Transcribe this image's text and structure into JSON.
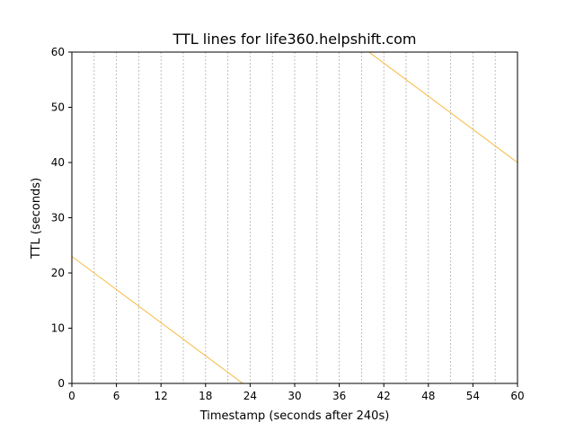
{
  "chart_data": {
    "type": "line",
    "title": "TTL lines for life360.helpshift.com",
    "xlabel": "Timestamp (seconds after 240s)",
    "ylabel": "TTL (seconds)",
    "xlim": [
      0,
      60
    ],
    "ylim": [
      0,
      60
    ],
    "xticks": [
      0,
      6,
      12,
      18,
      24,
      30,
      36,
      42,
      48,
      54,
      60
    ],
    "yticks": [
      0,
      10,
      20,
      30,
      40,
      50,
      60
    ],
    "vertical_gridlines_x": [
      3,
      6,
      9,
      12,
      15,
      18,
      21,
      24,
      27,
      30,
      33,
      36,
      39,
      42,
      45,
      48,
      51,
      54,
      57
    ],
    "grid": "vertical dashed",
    "series": [
      {
        "x": [
          0,
          23
        ],
        "y": [
          23,
          0
        ]
      },
      {
        "x": [
          40,
          60
        ],
        "y": [
          60,
          40
        ]
      }
    ],
    "colors": {
      "line": "#f5b42e",
      "grid": "#b0b0b0",
      "axes": "#000000"
    }
  }
}
